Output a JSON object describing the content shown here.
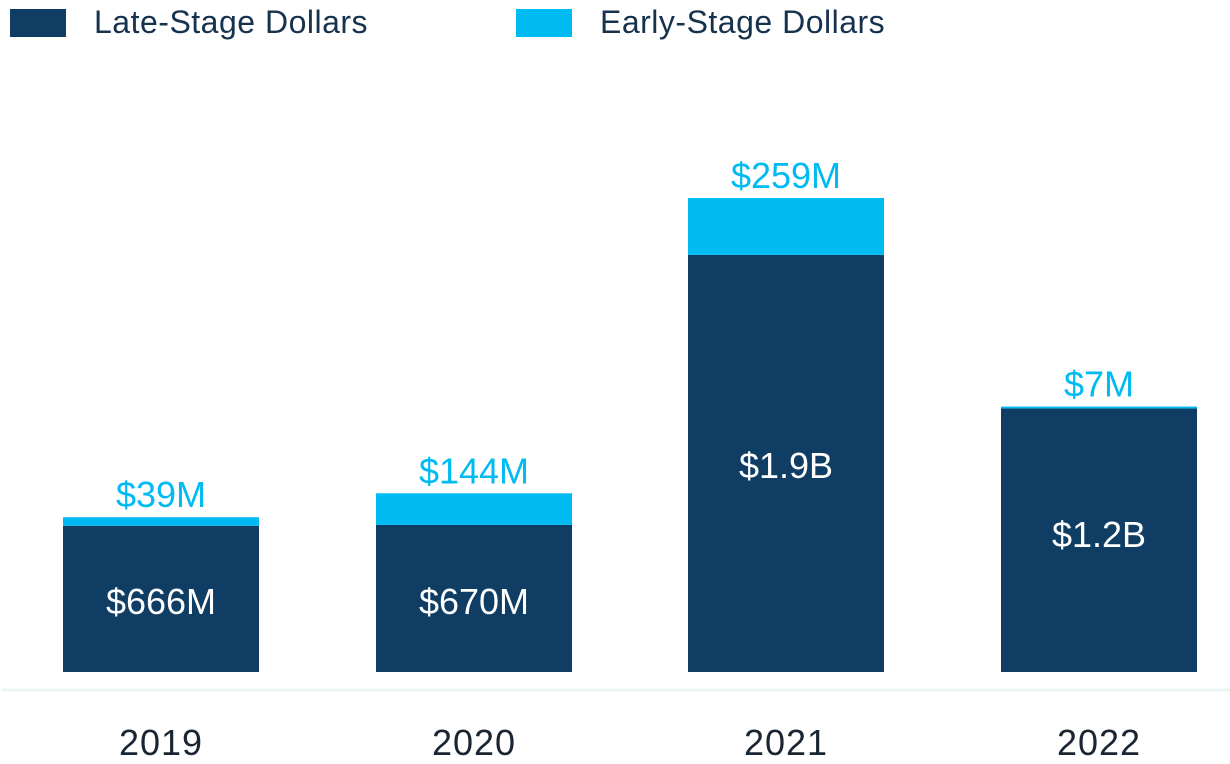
{
  "legend": {
    "late_label": "Late-Stage Dollars",
    "early_label": "Early-Stage Dollars"
  },
  "colors": {
    "late": "#0f3d63",
    "early": "#00bbf2",
    "axis": "#eef3f6",
    "year_text": "#1a2533",
    "inner_text": "#ffffff"
  },
  "chart_data": {
    "type": "bar",
    "stacked": true,
    "categories": [
      "2019",
      "2020",
      "2021",
      "2022"
    ],
    "series": [
      {
        "name": "Late-Stage Dollars",
        "values": [
          666,
          670,
          1900,
          1200
        ],
        "labels": [
          "$666M",
          "$670M",
          "$1.9B",
          "$1.2B"
        ],
        "color": "#0f3d63"
      },
      {
        "name": "Early-Stage Dollars",
        "values": [
          39,
          144,
          259,
          7
        ],
        "labels": [
          "$39M",
          "$144M",
          "$259M",
          "$7M"
        ],
        "color": "#00bbf2"
      }
    ],
    "units": "USD millions",
    "title": "",
    "xlabel": "",
    "ylabel": "",
    "ylim": [
      0,
      2159
    ],
    "grid": false,
    "legend_position": "top-left"
  }
}
